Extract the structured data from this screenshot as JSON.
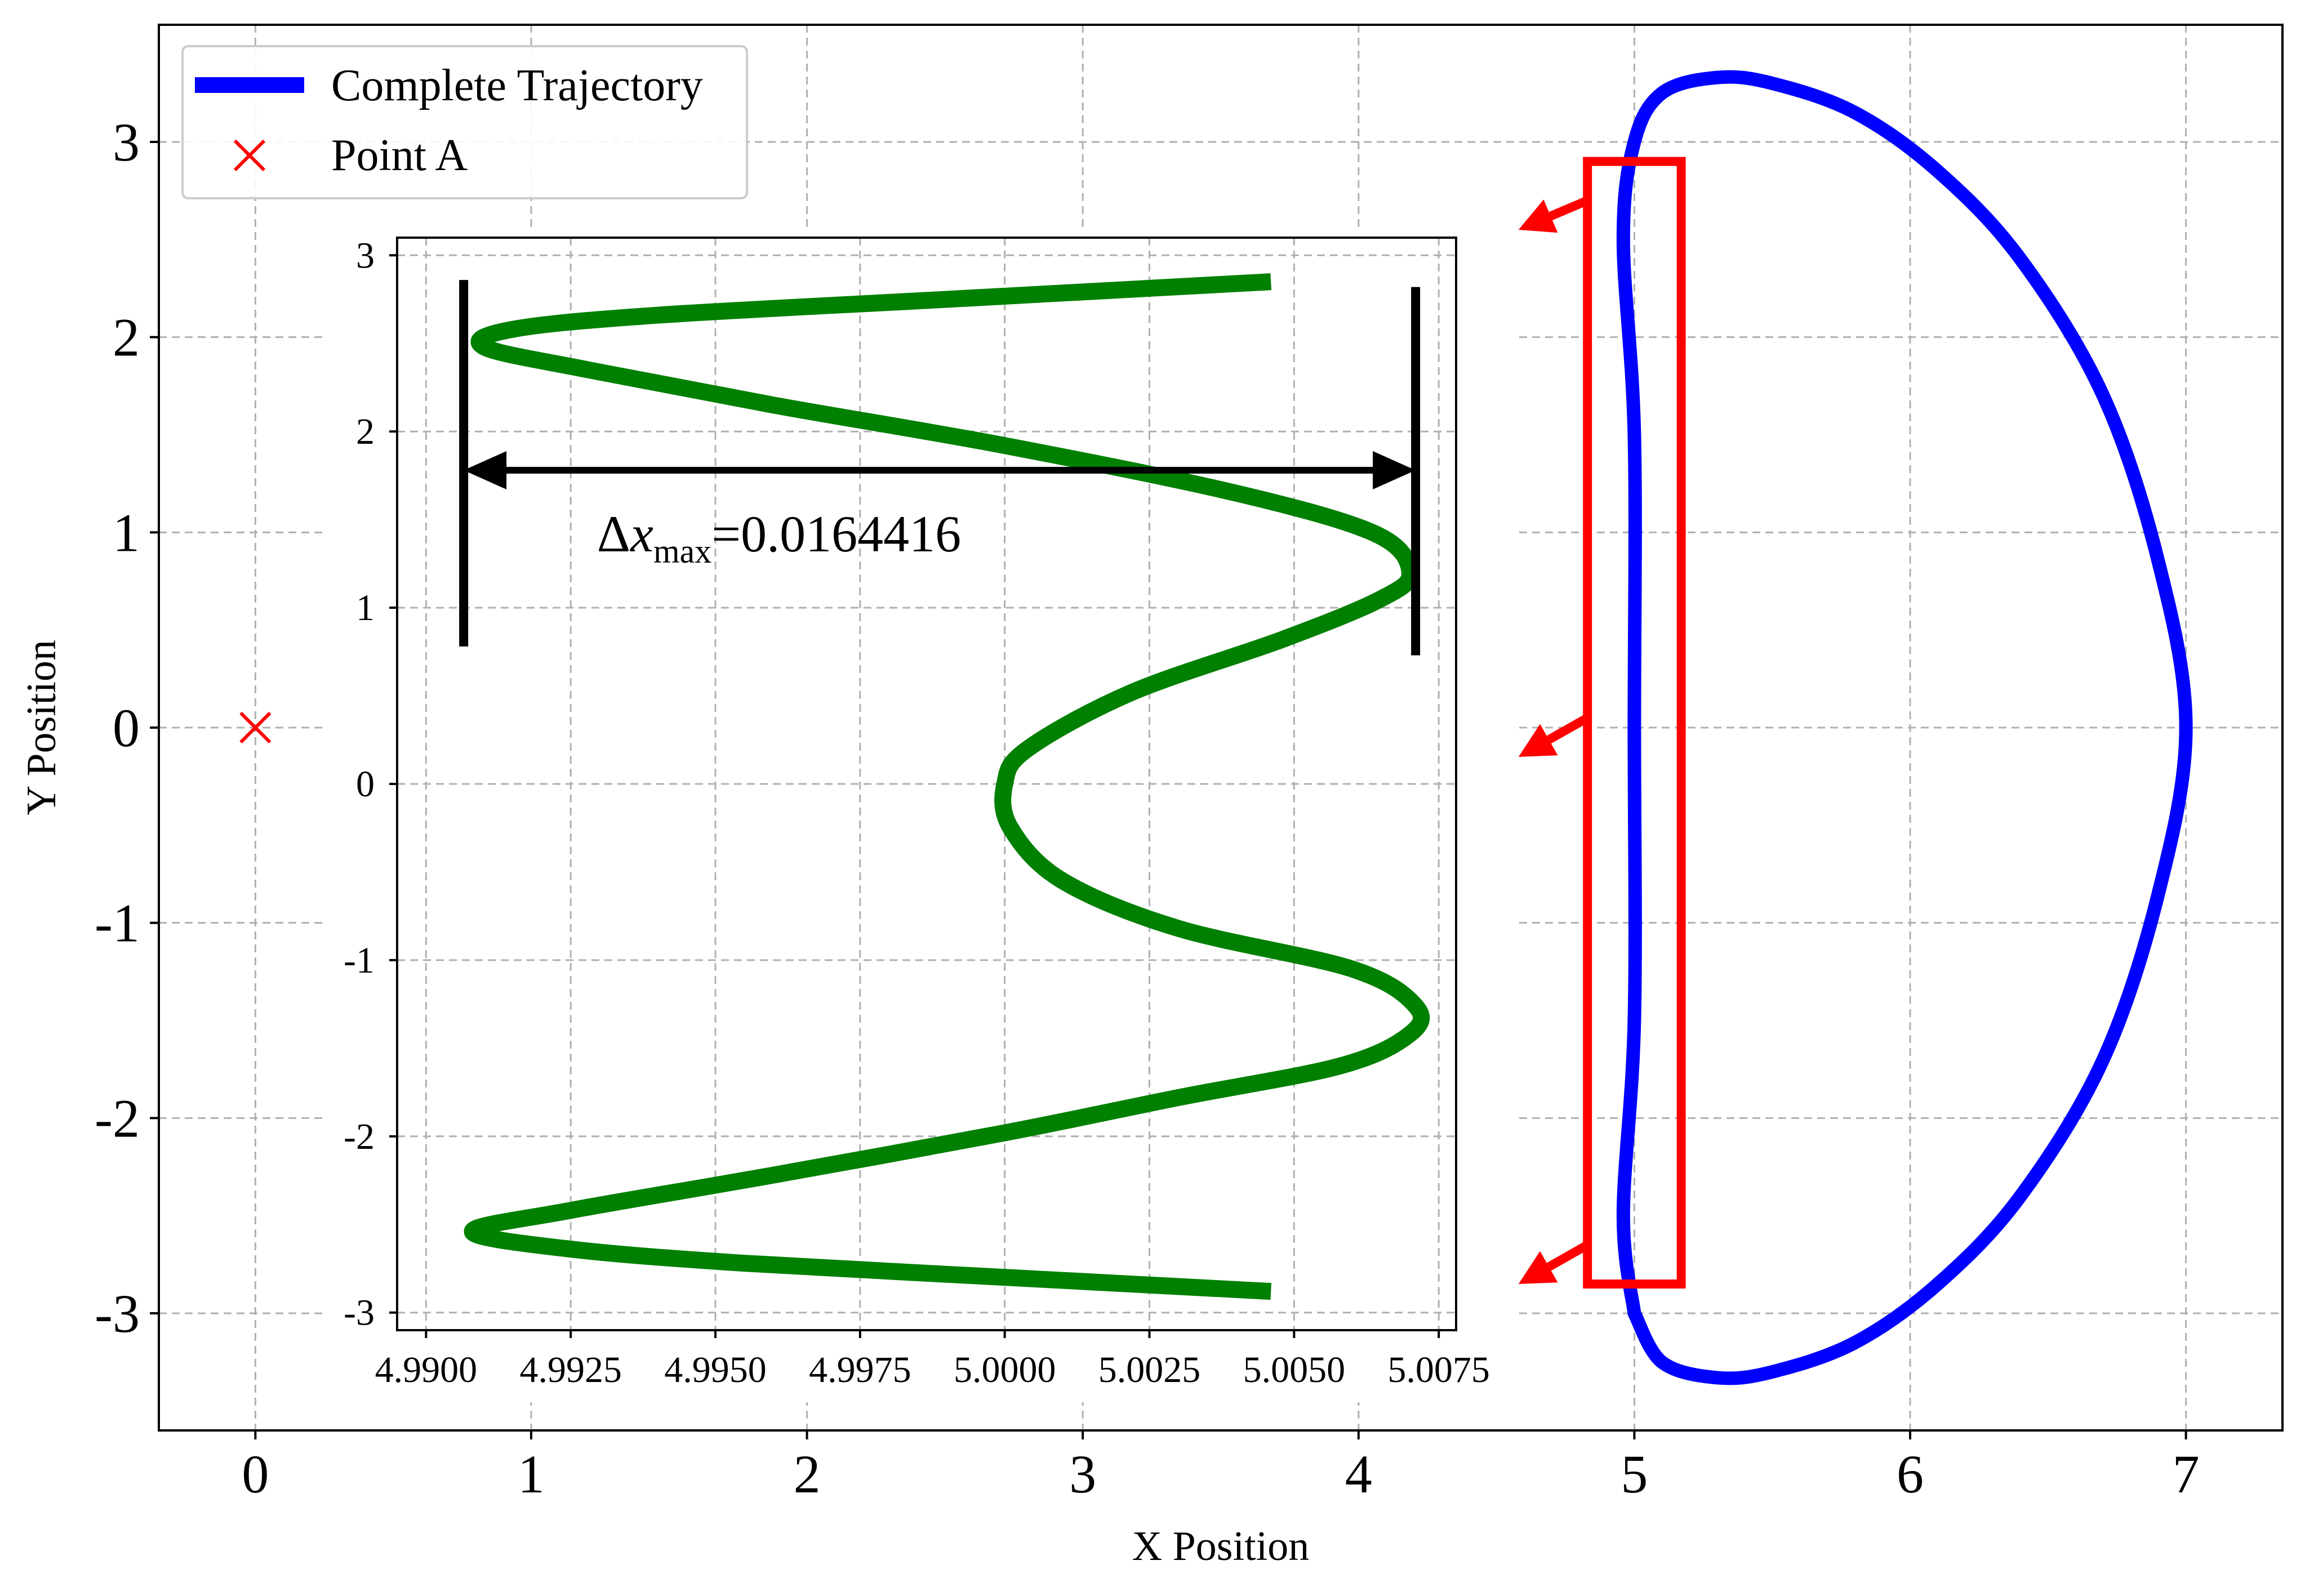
{
  "chart_data": [
    {
      "id": "main",
      "type": "line",
      "xlabel": "X Position",
      "ylabel": "Y Position",
      "xlim": [
        -0.35,
        7.35
      ],
      "ylim": [
        -3.6,
        3.6
      ],
      "xticks": [
        0,
        1,
        2,
        3,
        4,
        5,
        6,
        7
      ],
      "yticks": [
        -3,
        -2,
        -1,
        0,
        1,
        2,
        3
      ],
      "grid": true,
      "legend_position": "top-left",
      "series": [
        {
          "name": "Complete Trajectory",
          "kind": "line",
          "color": "#0000ff",
          "points": [
            [
              5.0,
              -3.0
            ],
            [
              4.96,
              -2.5
            ],
            [
              5.0,
              -1.5
            ],
            [
              5.0,
              0
            ],
            [
              5.0,
              1.5
            ],
            [
              4.96,
              2.5
            ],
            [
              5.0,
              3.0
            ],
            [
              5.1,
              3.25
            ],
            [
              5.3,
              3.33
            ],
            [
              5.5,
              3.3
            ],
            [
              5.8,
              3.15
            ],
            [
              6.1,
              2.85
            ],
            [
              6.4,
              2.4
            ],
            [
              6.7,
              1.7
            ],
            [
              6.9,
              0.85
            ],
            [
              7.0,
              0.0
            ],
            [
              6.9,
              -0.85
            ],
            [
              6.7,
              -1.7
            ],
            [
              6.4,
              -2.4
            ],
            [
              6.1,
              -2.85
            ],
            [
              5.8,
              -3.15
            ],
            [
              5.5,
              -3.3
            ],
            [
              5.3,
              -3.33
            ],
            [
              5.1,
              -3.25
            ],
            [
              5.0,
              -3.0
            ]
          ]
        },
        {
          "name": "Point A",
          "kind": "marker",
          "marker": "x",
          "color": "#ff0000",
          "points": [
            [
              0,
              0
            ]
          ]
        }
      ],
      "annotations": {
        "highlight_box": {
          "x0": 4.83,
          "x1": 5.17,
          "y0": -2.85,
          "y1": 2.9,
          "color": "#ff0000"
        },
        "arrow_color": "#ff0000",
        "arrows": [
          {
            "from": [
              4.83,
              2.7
            ],
            "to": [
              4.58,
              2.55
            ]
          },
          {
            "from": [
              4.83,
              0.05
            ],
            "to": [
              4.58,
              -0.15
            ]
          },
          {
            "from": [
              4.83,
              -2.65
            ],
            "to": [
              4.58,
              -2.85
            ]
          }
        ]
      }
    },
    {
      "id": "inset",
      "type": "line",
      "xlim": [
        4.9895,
        5.0078
      ],
      "ylim": [
        -3.1,
        3.1
      ],
      "xticks": [
        4.99,
        4.9925,
        4.995,
        4.9975,
        5.0,
        5.0025,
        5.005,
        5.0075
      ],
      "xtick_labels": [
        "4.9900",
        "4.9925",
        "4.9950",
        "4.9975",
        "5.0000",
        "5.0025",
        "5.0050",
        "5.0075"
      ],
      "yticks": [
        -3,
        -2,
        -1,
        0,
        1,
        2,
        3
      ],
      "ytick_labels": [
        "-3",
        "-2",
        "-1",
        "0",
        "1",
        "2",
        "3"
      ],
      "grid": true,
      "series": [
        {
          "kind": "line",
          "color": "#008000",
          "points": [
            [
              5.0046,
              -2.88
            ],
            [
              5.0,
              -2.8
            ],
            [
              4.9955,
              -2.72
            ],
            [
              4.9925,
              -2.64
            ],
            [
              4.9908,
              -2.54
            ],
            [
              4.9925,
              -2.42
            ],
            [
              4.996,
              -2.22
            ],
            [
              5.0,
              -1.98
            ],
            [
              5.003,
              -1.78
            ],
            [
              5.0058,
              -1.6
            ],
            [
              5.007,
              -1.42
            ],
            [
              5.0071,
              -1.26
            ],
            [
              5.006,
              -1.05
            ],
            [
              5.003,
              -0.82
            ],
            [
              5.001,
              -0.55
            ],
            [
              5.0001,
              -0.25
            ],
            [
              5.0,
              0.0
            ],
            [
              5.0004,
              0.2
            ],
            [
              5.0022,
              0.52
            ],
            [
              5.0048,
              0.82
            ],
            [
              5.0065,
              1.05
            ],
            [
              5.007,
              1.2
            ],
            [
              5.0064,
              1.42
            ],
            [
              5.004,
              1.65
            ],
            [
              5.0,
              1.92
            ],
            [
              4.996,
              2.15
            ],
            [
              4.9928,
              2.35
            ],
            [
              4.991,
              2.48
            ],
            [
              4.9915,
              2.58
            ],
            [
              4.994,
              2.66
            ],
            [
              4.999,
              2.75
            ],
            [
              5.0046,
              2.85
            ]
          ]
        }
      ],
      "vlines": [
        {
          "x": 4.99065,
          "y0": 0.78,
          "y1": 2.86
        },
        {
          "x": 5.0071,
          "y0": 0.73,
          "y1": 2.82
        }
      ],
      "arrow": {
        "x0": 4.99065,
        "x1": 5.0071,
        "y": 1.78
      },
      "delta_label": {
        "symbol": "Δ",
        "var": "x",
        "subscript": "max",
        "value": "=0.0164416",
        "x": 4.9961,
        "y": 1.32
      }
    }
  ],
  "colors": {
    "axes": "#000000",
    "grid": "#b0b0b0"
  }
}
